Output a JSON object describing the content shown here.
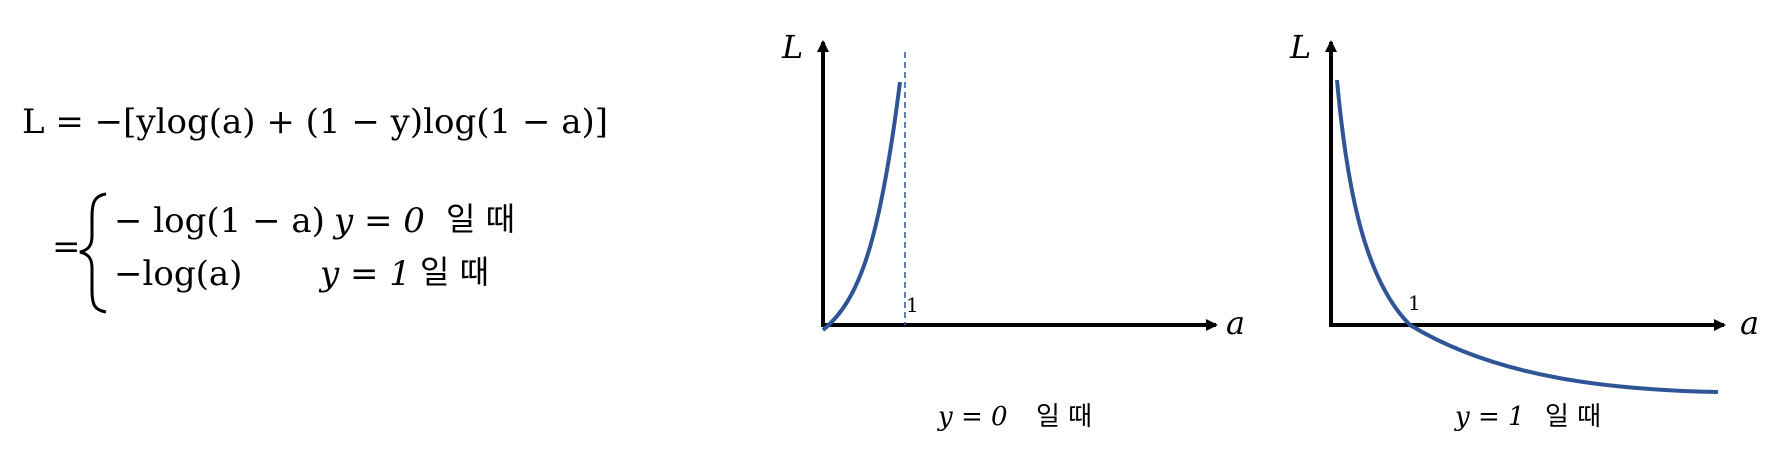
{
  "formula": {
    "main": "L = −[ylog(a) + (1 − y)log(1 − a)]",
    "equals": "=",
    "case1_expr": "− log(1 − a)",
    "case1_cond": "y = 0",
    "case1_suffix": "일 때",
    "case2_expr": "−log(a)",
    "case2_cond": "y = 1",
    "case2_suffix": "일 때"
  },
  "plots": [
    {
      "y_axis_label": "L",
      "x_axis_label": "a",
      "tick_label": "1",
      "caption_math": "y = 0",
      "caption_suffix": "일 때"
    },
    {
      "y_axis_label": "L",
      "x_axis_label": "a",
      "tick_label": "1",
      "caption_math": "y = 1",
      "caption_suffix": "일 때"
    }
  ],
  "colors": {
    "curve": "#2f5597",
    "axis": "#000000",
    "dashed": "#2f5597"
  }
}
